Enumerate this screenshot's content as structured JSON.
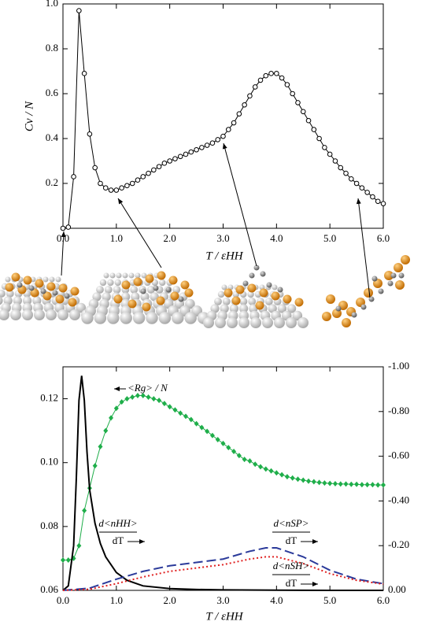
{
  "chart_data": [
    {
      "type": "line",
      "ylabel": "Cv / N",
      "xlabel": "T / εHH",
      "x": [
        0,
        0.1,
        0.2,
        0.3,
        0.4,
        0.5,
        0.6,
        0.7,
        0.8,
        0.9,
        1.0,
        1.1,
        1.2,
        1.3,
        1.4,
        1.5,
        1.6,
        1.7,
        1.8,
        1.9,
        2.0,
        2.1,
        2.2,
        2.3,
        2.4,
        2.5,
        2.6,
        2.7,
        2.8,
        2.9,
        3.0,
        3.1,
        3.2,
        3.3,
        3.4,
        3.5,
        3.6,
        3.7,
        3.8,
        3.9,
        4.0,
        4.1,
        4.2,
        4.3,
        4.4,
        4.5,
        4.6,
        4.7,
        4.8,
        4.9,
        5.0,
        5.1,
        5.2,
        5.3,
        5.4,
        5.5,
        5.6,
        5.7,
        5.8,
        5.9,
        6.0
      ],
      "values": [
        0.0,
        0.005,
        0.23,
        0.97,
        0.69,
        0.42,
        0.27,
        0.2,
        0.18,
        0.17,
        0.17,
        0.18,
        0.19,
        0.2,
        0.215,
        0.23,
        0.245,
        0.26,
        0.275,
        0.29,
        0.3,
        0.31,
        0.32,
        0.33,
        0.34,
        0.35,
        0.36,
        0.37,
        0.38,
        0.395,
        0.41,
        0.44,
        0.47,
        0.51,
        0.55,
        0.59,
        0.63,
        0.66,
        0.68,
        0.69,
        0.69,
        0.67,
        0.64,
        0.6,
        0.56,
        0.52,
        0.48,
        0.44,
        0.4,
        0.36,
        0.33,
        0.3,
        0.27,
        0.245,
        0.22,
        0.2,
        0.18,
        0.16,
        0.14,
        0.12,
        0.11
      ],
      "color": "#000000",
      "marker": "circle",
      "xlim": [
        0,
        6
      ],
      "ylim": [
        0,
        1
      ],
      "xticks": [
        {
          "value": 0,
          "label": "0.0"
        },
        {
          "value": 1,
          "label": "1.0"
        },
        {
          "value": 2,
          "label": "2.0"
        },
        {
          "value": 3,
          "label": "3.0"
        },
        {
          "value": 4,
          "label": "4.0"
        },
        {
          "value": 5,
          "label": "5.0"
        },
        {
          "value": 6,
          "label": "6.0"
        }
      ],
      "yticks": [
        0.2,
        0.4,
        0.6,
        0.8,
        {
          "value": 1,
          "label": "1.0"
        }
      ]
    },
    {
      "type": "line",
      "xlabel": "T / εHH",
      "xlim": [
        0,
        6
      ],
      "ylim": [
        0.06,
        0.13
      ],
      "y2lim": [
        0,
        -1
      ],
      "xticks": [
        {
          "value": 0,
          "label": "0.0"
        },
        {
          "value": 1,
          "label": "1.0"
        },
        {
          "value": 2,
          "label": "2.0"
        },
        {
          "value": 3,
          "label": "3.0"
        },
        {
          "value": 4,
          "label": "4.0"
        },
        {
          "value": 5,
          "label": "5.0"
        },
        {
          "value": 6,
          "label": "6.0"
        }
      ],
      "yticks": [
        0.06,
        0.08,
        {
          "value": 0.1,
          "label": "0.10"
        },
        0.12
      ],
      "y2ticks": [
        {
          "value": 0,
          "label": "0.00"
        },
        {
          "value": -0.2,
          "label": "-0.20"
        },
        {
          "value": -0.4,
          "label": "-0.40"
        },
        {
          "value": -0.6,
          "label": "-0.60"
        },
        {
          "value": -0.8,
          "label": "-0.80"
        },
        {
          "value": -1,
          "label": "-1.00"
        }
      ],
      "series": [
        {
          "name": "<Rg> / N",
          "color": "#1fae4a",
          "marker": "diamond",
          "x": [
            0,
            0.1,
            0.2,
            0.3,
            0.4,
            0.5,
            0.6,
            0.7,
            0.8,
            0.9,
            1.0,
            1.1,
            1.2,
            1.3,
            1.4,
            1.5,
            1.6,
            1.7,
            1.8,
            1.9,
            2.0,
            2.1,
            2.2,
            2.3,
            2.4,
            2.5,
            2.6,
            2.7,
            2.8,
            2.9,
            3.0,
            3.1,
            3.2,
            3.3,
            3.4,
            3.5,
            3.6,
            3.7,
            3.8,
            3.9,
            4.0,
            4.1,
            4.2,
            4.3,
            4.4,
            4.5,
            4.6,
            4.7,
            4.8,
            4.9,
            5.0,
            5.1,
            5.2,
            5.3,
            5.4,
            5.5,
            5.6,
            5.7,
            5.8,
            5.9,
            6.0
          ],
          "values": [
            0.0695,
            0.0695,
            0.07,
            0.074,
            0.085,
            0.092,
            0.099,
            0.105,
            0.11,
            0.114,
            0.117,
            0.119,
            0.12,
            0.1205,
            0.121,
            0.121,
            0.1205,
            0.12,
            0.1195,
            0.1185,
            0.1175,
            0.1165,
            0.1155,
            0.1145,
            0.1135,
            0.1122,
            0.111,
            0.1098,
            0.1085,
            0.1072,
            0.106,
            0.1047,
            0.1035,
            0.1022,
            0.101,
            0.1005,
            0.0995,
            0.0987,
            0.098,
            0.0974,
            0.0968,
            0.0962,
            0.0956,
            0.0952,
            0.0948,
            0.0945,
            0.0942,
            0.094,
            0.0938,
            0.0936,
            0.0935,
            0.0934,
            0.0933,
            0.0933,
            0.0932,
            0.0932,
            0.0931,
            0.0931,
            0.0931,
            0.093,
            0.093
          ]
        },
        {
          "name": "d<nHH>",
          "name_den": "dT",
          "color": "#000000",
          "axis": "y2",
          "x": [
            0,
            0.1,
            0.2,
            0.25,
            0.3,
            0.35,
            0.4,
            0.45,
            0.5,
            0.6,
            0.7,
            0.8,
            1.0,
            1.2,
            1.5,
            2.0,
            2.5,
            3.0,
            4.0,
            5.0,
            6.0
          ],
          "values": [
            0,
            -0.02,
            -0.2,
            -0.5,
            -0.85,
            -0.96,
            -0.85,
            -0.62,
            -0.45,
            -0.3,
            -0.21,
            -0.15,
            -0.08,
            -0.045,
            -0.02,
            -0.008,
            -0.004,
            -0.002,
            -0.001,
            0,
            0
          ]
        },
        {
          "name": "d<nSP>",
          "name_den": "dT",
          "color": "#2b3a9a",
          "dash": "dashed",
          "axis": "y2",
          "x": [
            0,
            0.5,
            1.0,
            1.5,
            2.0,
            2.5,
            3.0,
            3.5,
            3.8,
            4.0,
            4.5,
            5.0,
            5.5,
            6.0
          ],
          "values": [
            0,
            -0.01,
            -0.05,
            -0.085,
            -0.11,
            -0.125,
            -0.14,
            -0.175,
            -0.19,
            -0.19,
            -0.15,
            -0.09,
            -0.05,
            -0.03
          ]
        },
        {
          "name": "d<nSH>",
          "name_den": "dT",
          "color": "#e02020",
          "dash": "dotted",
          "axis": "y2",
          "x": [
            0,
            0.5,
            1.0,
            1.5,
            2.0,
            2.5,
            3.0,
            3.5,
            3.8,
            4.0,
            4.5,
            5.0,
            5.5,
            6.0
          ],
          "values": [
            0,
            -0.005,
            -0.03,
            -0.06,
            -0.085,
            -0.1,
            -0.115,
            -0.14,
            -0.15,
            -0.15,
            -0.12,
            -0.075,
            -0.045,
            -0.028
          ]
        }
      ]
    }
  ]
}
